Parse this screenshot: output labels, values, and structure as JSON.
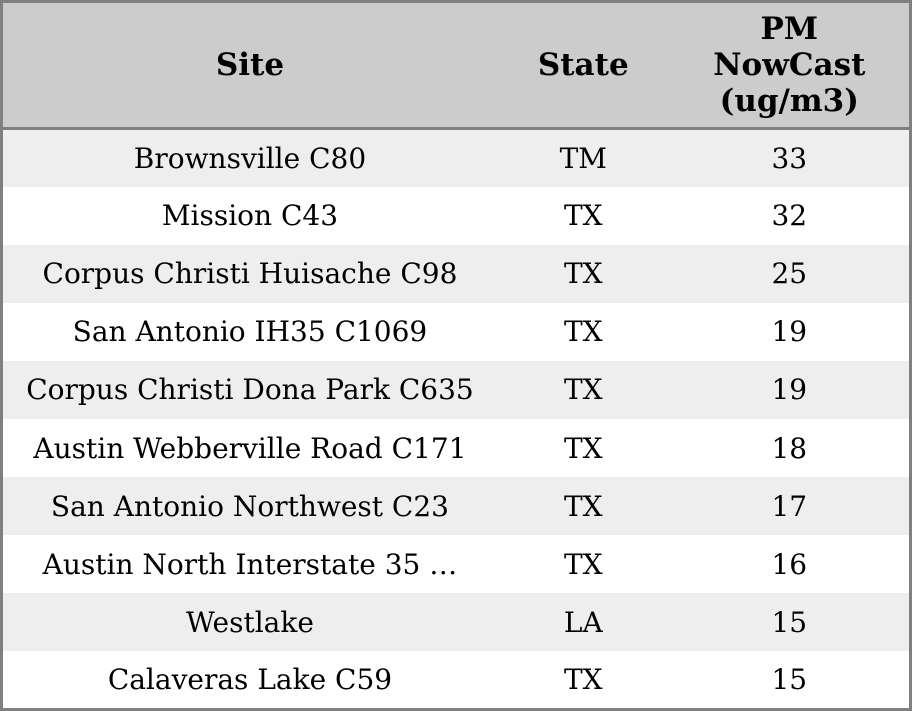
{
  "chart_data": {
    "type": "table",
    "title": "",
    "columns": [
      "Site",
      "State",
      "PM NowCast (ug/m3)"
    ],
    "rows": [
      {
        "site": "Brownsville C80",
        "state": "TM",
        "pm_nowcast": "33"
      },
      {
        "site": "Mission C43",
        "state": "TX",
        "pm_nowcast": "32"
      },
      {
        "site": "Corpus Christi Huisache C98",
        "state": "TX",
        "pm_nowcast": "25"
      },
      {
        "site": "San Antonio IH35 C1069",
        "state": "TX",
        "pm_nowcast": "19"
      },
      {
        "site": "Corpus Christi Dona Park C635",
        "state": "TX",
        "pm_nowcast": "19"
      },
      {
        "site": "Austin Webberville Road C171",
        "state": "TX",
        "pm_nowcast": "18"
      },
      {
        "site": "San Antonio Northwest C23",
        "state": "TX",
        "pm_nowcast": "17"
      },
      {
        "site": "Austin North Interstate 35 …",
        "state": "TX",
        "pm_nowcast": "16"
      },
      {
        "site": "Westlake",
        "state": "LA",
        "pm_nowcast": "15"
      },
      {
        "site": "Calaveras Lake C59",
        "state": "TX",
        "pm_nowcast": "15"
      }
    ]
  },
  "headers_display": {
    "site": "Site",
    "state": "State",
    "pm_nowcast": "PM\nNowCast\n(ug/m3)"
  },
  "colors": {
    "header_bg": "#cccccc",
    "row_stripe_bg": "#eeeeee",
    "row_plain_bg": "#ffffff",
    "border": "#808080",
    "text": "#000000"
  }
}
